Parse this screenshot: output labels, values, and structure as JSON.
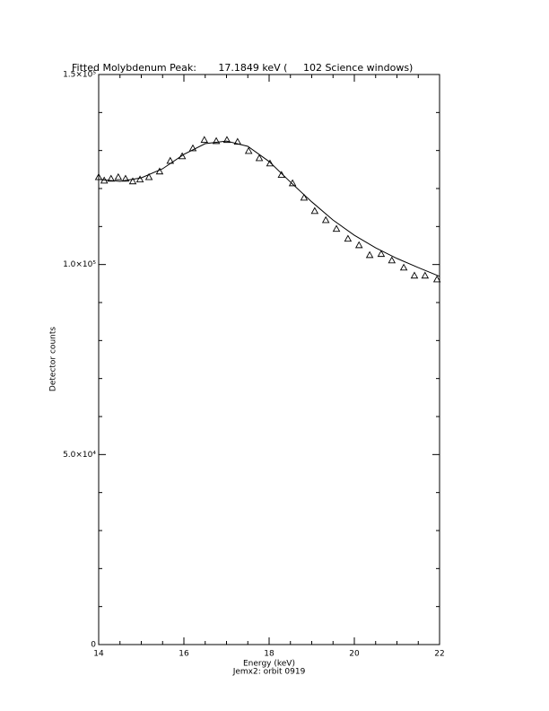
{
  "chart_data": {
    "type": "scatter",
    "title": "Fitted Molybdenum Peak:       17.1849 keV (     102 Science windows)",
    "xlabel": "Energy (keV)",
    "ylabel": "Detector counts",
    "subtitle": "Jemx2: orbit 0919",
    "xlim": [
      14,
      22
    ],
    "xticks": [
      14,
      16,
      18,
      20,
      22
    ],
    "xminorticks": [
      14.5,
      15,
      15.5,
      16.5,
      17,
      17.5,
      18.5,
      19,
      19.5,
      20.5,
      21,
      21.5
    ],
    "ylim": [
      0,
      150000
    ],
    "yticks": [
      {
        "value": 0,
        "label": "0"
      },
      {
        "value": 50000,
        "label": "5.0×10⁴"
      },
      {
        "value": 100000,
        "label": "1.0×10⁵"
      },
      {
        "value": 150000,
        "label": "1.5×10⁵"
      }
    ],
    "yminorticks": [
      10000,
      20000,
      30000,
      40000,
      60000,
      70000,
      80000,
      90000,
      110000,
      120000,
      130000,
      140000
    ],
    "color": "#000000",
    "points": {
      "x": [
        14.0,
        14.13,
        14.29,
        14.46,
        14.63,
        14.8,
        14.97,
        15.18,
        15.43,
        15.68,
        15.96,
        16.21,
        16.48,
        16.76,
        17.01,
        17.26,
        17.52,
        17.77,
        18.02,
        18.29,
        18.55,
        18.82,
        19.07,
        19.33,
        19.58,
        19.85,
        20.11,
        20.36,
        20.63,
        20.88,
        21.16,
        21.41,
        21.66,
        21.94
      ],
      "values": [
        123000,
        122100,
        122600,
        123000,
        122600,
        121900,
        122400,
        123000,
        124500,
        127300,
        128500,
        130600,
        132800,
        132500,
        132800,
        132300,
        129900,
        128000,
        126600,
        123600,
        121400,
        117600,
        114100,
        111700,
        109400,
        106800,
        105100,
        102500,
        102800,
        101100,
        99200,
        97100,
        97100,
        96100
      ]
    },
    "fit": {
      "x": [
        14,
        14.5,
        15,
        15.5,
        16,
        16.5,
        17,
        17.5,
        18,
        18.5,
        19,
        19.5,
        20,
        20.5,
        21,
        21.5,
        22
      ],
      "values": [
        122400,
        121900,
        122800,
        125200,
        129000,
        131800,
        132500,
        131100,
        127100,
        121700,
        116500,
        111700,
        107700,
        104400,
        101600,
        99200,
        96900
      ]
    }
  }
}
